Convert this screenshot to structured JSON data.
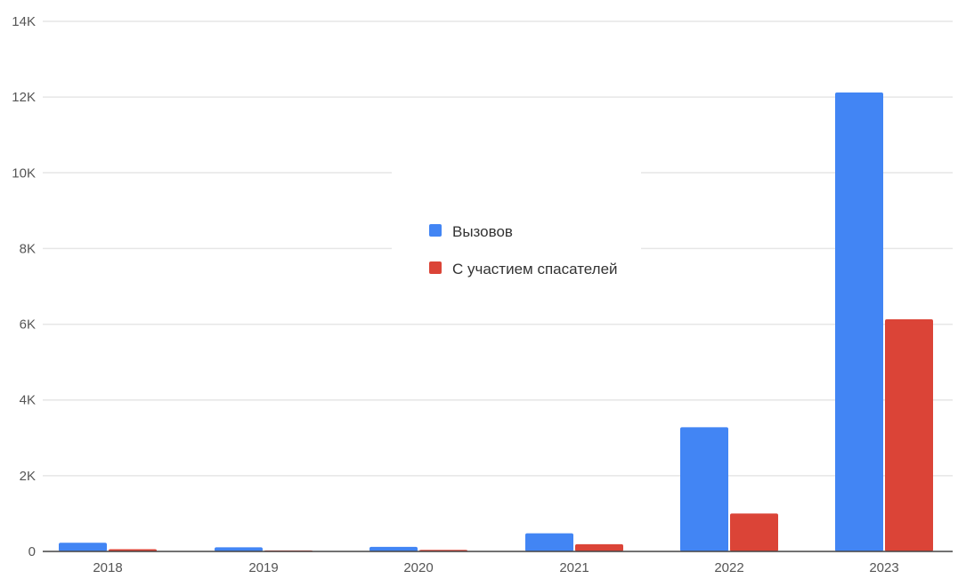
{
  "chart_data": {
    "type": "bar",
    "categories": [
      "2018",
      "2019",
      "2020",
      "2021",
      "2022",
      "2023"
    ],
    "series": [
      {
        "name": "Вызовов",
        "color": "#4285F4",
        "values": [
          230,
          110,
          120,
          480,
          3280,
          12120
        ]
      },
      {
        "name": "С участием спасателей",
        "color": "#DB4437",
        "values": [
          60,
          25,
          40,
          190,
          1000,
          6130
        ]
      }
    ],
    "y_ticks": [
      {
        "value": 0,
        "label": "0"
      },
      {
        "value": 2000,
        "label": "2K"
      },
      {
        "value": 4000,
        "label": "4K"
      },
      {
        "value": 6000,
        "label": "6K"
      },
      {
        "value": 8000,
        "label": "8K"
      },
      {
        "value": 10000,
        "label": "10K"
      },
      {
        "value": 12000,
        "label": "12K"
      },
      {
        "value": 14000,
        "label": "14K"
      }
    ],
    "ylim": [
      0,
      14000
    ],
    "grid": true,
    "legend_position": "center",
    "gridline_color": "#e6e6e6",
    "axis_color": "#444444"
  }
}
